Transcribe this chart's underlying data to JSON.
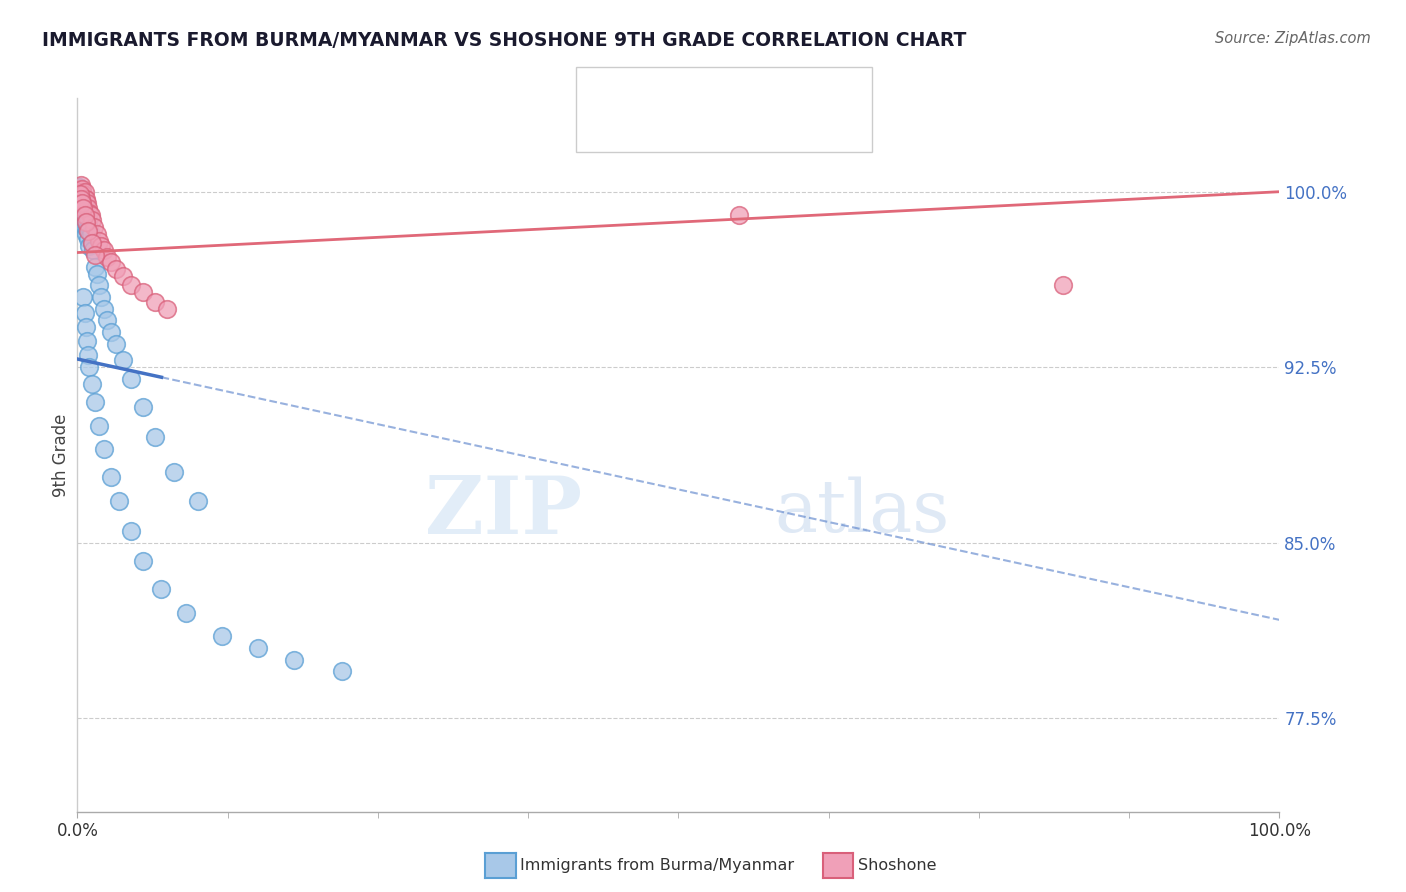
{
  "title": "IMMIGRANTS FROM BURMA/MYANMAR VS SHOSHONE 9TH GRADE CORRELATION CHART",
  "source": "Source: ZipAtlas.com",
  "ylabel": "9th Grade",
  "yticks": [
    0.775,
    0.85,
    0.925,
    1.0
  ],
  "ytick_labels": [
    "77.5%",
    "85.0%",
    "92.5%",
    "100.0%"
  ],
  "xlim": [
    0.0,
    1.0
  ],
  "ylim": [
    0.735,
    1.04
  ],
  "blue_color": "#a8c8e8",
  "blue_edge_color": "#5a9fd4",
  "pink_color": "#f0a0b8",
  "pink_edge_color": "#d9607a",
  "blue_line_color": "#4472c4",
  "pink_line_color": "#e06878",
  "watermark_zip": "ZIP",
  "watermark_atlas": "atlas",
  "blue_line_x0": 0.0,
  "blue_line_y0": 0.9285,
  "blue_line_x1": 1.0,
  "blue_line_y1": 0.817,
  "pink_line_x0": 0.0,
  "pink_line_y0": 0.974,
  "pink_line_x1": 1.0,
  "pink_line_y1": 1.0,
  "blue_x": [
    0.001,
    0.002,
    0.002,
    0.002,
    0.003,
    0.003,
    0.003,
    0.003,
    0.004,
    0.004,
    0.004,
    0.005,
    0.005,
    0.005,
    0.006,
    0.006,
    0.006,
    0.007,
    0.007,
    0.007,
    0.008,
    0.008,
    0.009,
    0.009,
    0.01,
    0.01,
    0.011,
    0.012,
    0.013,
    0.015,
    0.016,
    0.018,
    0.02,
    0.022,
    0.025,
    0.028,
    0.032,
    0.038,
    0.045,
    0.055,
    0.065,
    0.08,
    0.1,
    0.005,
    0.006,
    0.007,
    0.008,
    0.009,
    0.01,
    0.012,
    0.015,
    0.018,
    0.022,
    0.028,
    0.035,
    0.045,
    0.055,
    0.07,
    0.09,
    0.12,
    0.15,
    0.18,
    0.22
  ],
  "blue_y": [
    1.002,
    1.0,
    0.998,
    0.995,
    0.999,
    0.996,
    0.993,
    0.989,
    0.997,
    0.994,
    0.99,
    0.995,
    0.992,
    0.988,
    0.994,
    0.99,
    0.985,
    0.992,
    0.988,
    0.982,
    0.99,
    0.984,
    0.988,
    0.98,
    0.985,
    0.977,
    0.982,
    0.978,
    0.975,
    0.968,
    0.965,
    0.96,
    0.955,
    0.95,
    0.945,
    0.94,
    0.935,
    0.928,
    0.92,
    0.908,
    0.895,
    0.88,
    0.868,
    0.955,
    0.948,
    0.942,
    0.936,
    0.93,
    0.925,
    0.918,
    0.91,
    0.9,
    0.89,
    0.878,
    0.868,
    0.855,
    0.842,
    0.83,
    0.82,
    0.81,
    0.805,
    0.8,
    0.795
  ],
  "pink_x": [
    0.002,
    0.003,
    0.003,
    0.004,
    0.004,
    0.005,
    0.005,
    0.006,
    0.006,
    0.007,
    0.008,
    0.009,
    0.01,
    0.011,
    0.012,
    0.014,
    0.016,
    0.018,
    0.02,
    0.022,
    0.025,
    0.028,
    0.032,
    0.038,
    0.045,
    0.055,
    0.065,
    0.075,
    0.002,
    0.003,
    0.004,
    0.005,
    0.006,
    0.007,
    0.009,
    0.012,
    0.015,
    0.55,
    0.82
  ],
  "pink_y": [
    1.001,
    1.003,
    1.0,
    1.001,
    0.998,
    0.999,
    0.996,
    1.0,
    0.997,
    0.997,
    0.995,
    0.993,
    0.991,
    0.99,
    0.988,
    0.985,
    0.982,
    0.979,
    0.977,
    0.975,
    0.972,
    0.97,
    0.967,
    0.964,
    0.96,
    0.957,
    0.953,
    0.95,
    0.999,
    0.997,
    0.995,
    0.993,
    0.99,
    0.987,
    0.983,
    0.978,
    0.973,
    0.99,
    0.96
  ]
}
